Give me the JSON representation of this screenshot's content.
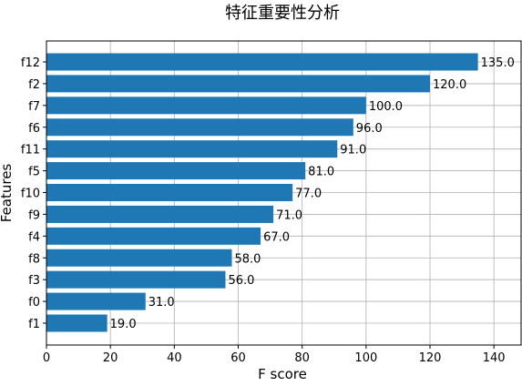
{
  "chart_data": {
    "type": "bar",
    "orientation": "horizontal",
    "title": "特征重要性分析",
    "xlabel": "F score",
    "ylabel": "Features",
    "categories": [
      "f12",
      "f2",
      "f7",
      "f6",
      "f11",
      "f5",
      "f10",
      "f9",
      "f4",
      "f8",
      "f3",
      "f0",
      "f1"
    ],
    "values": [
      135,
      120,
      100,
      96,
      91,
      81,
      77,
      71,
      67,
      58,
      56,
      31,
      19
    ],
    "value_labels": [
      "135.0",
      "120.0",
      "100.0",
      "96.0",
      "91.0",
      "81.0",
      "77.0",
      "71.0",
      "67.0",
      "58.0",
      "56.0",
      "31.0",
      "19.0"
    ],
    "xticks": [
      0,
      20,
      40,
      60,
      80,
      100,
      120,
      140
    ],
    "xlim": [
      0,
      148.5
    ],
    "grid": true,
    "bar_color": "#1f77b4"
  }
}
